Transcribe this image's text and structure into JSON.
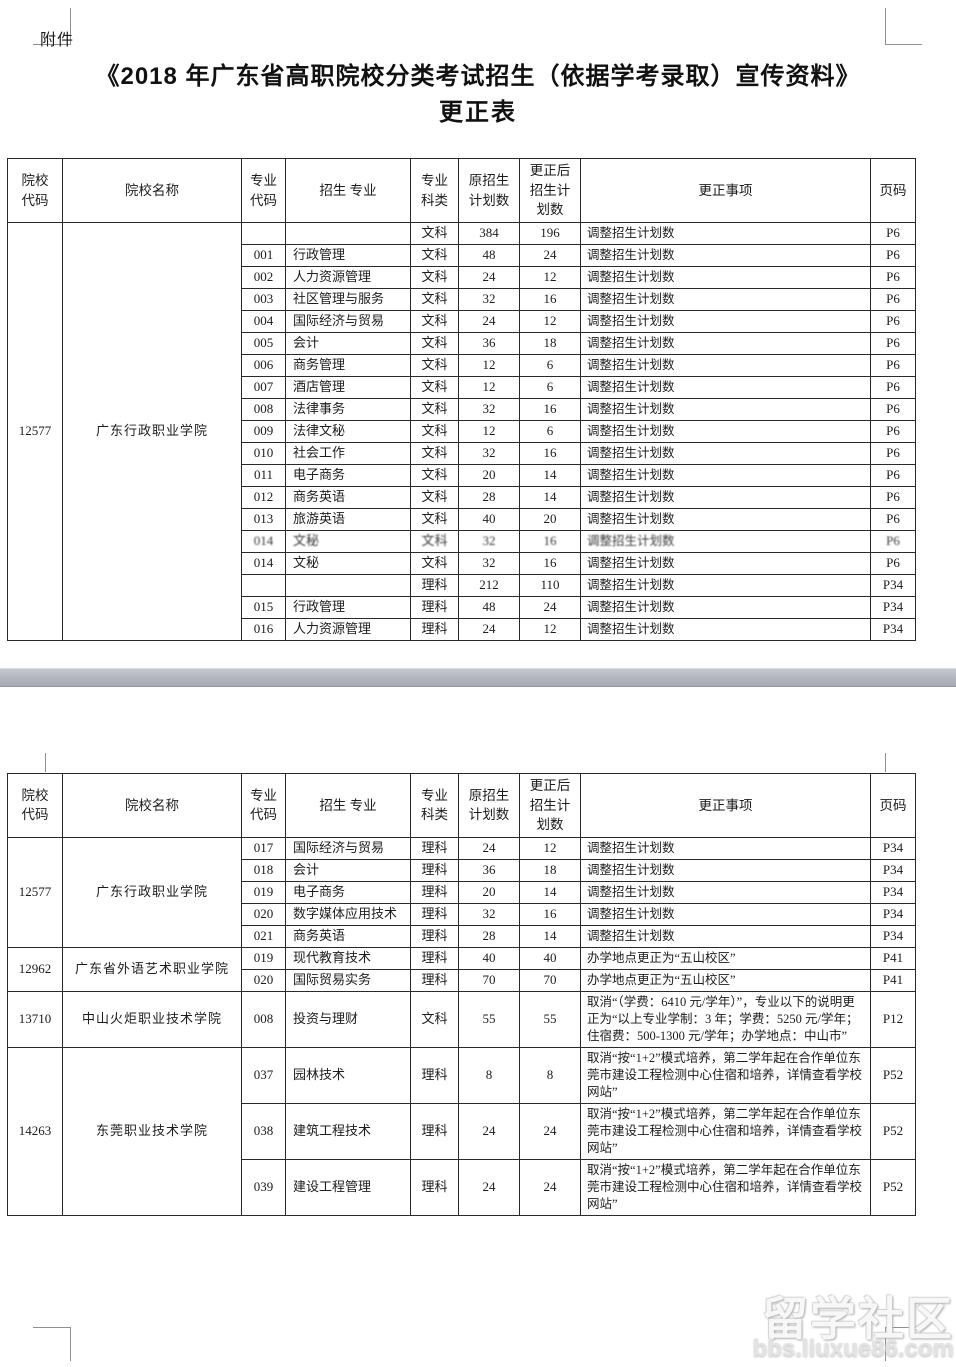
{
  "page": {
    "attachment_label": "附件",
    "title_line1": "《2018 年广东省高职院校分类考试招生（依据学考录取）宣传资料》",
    "title_line2": "更正表"
  },
  "headers": [
    "院校\n代码",
    "院校名称",
    "专业\n代码",
    "招生 专业",
    "专业\n科类",
    "原招生\n计划数",
    "更正后\n招生计\n划数",
    "更正事项",
    "页码"
  ],
  "table1": {
    "groups": [
      {
        "school_code": "12577",
        "school_name": "广东行政职业学院",
        "rows": [
          {
            "code": "",
            "major": "",
            "cat": "文科",
            "orig": "384",
            "updated": "196",
            "note": "调整招生计划数",
            "page": "P6"
          },
          {
            "code": "001",
            "major": "行政管理",
            "cat": "文科",
            "orig": "48",
            "updated": "24",
            "note": "调整招生计划数",
            "page": "P6"
          },
          {
            "code": "002",
            "major": "人力资源管理",
            "cat": "文科",
            "orig": "24",
            "updated": "12",
            "note": "调整招生计划数",
            "page": "P6"
          },
          {
            "code": "003",
            "major": "社区管理与服务",
            "cat": "文科",
            "orig": "32",
            "updated": "16",
            "note": "调整招生计划数",
            "page": "P6"
          },
          {
            "code": "004",
            "major": "国际经济与贸易",
            "cat": "文科",
            "orig": "24",
            "updated": "12",
            "note": "调整招生计划数",
            "page": "P6"
          },
          {
            "code": "005",
            "major": "会计",
            "cat": "文科",
            "orig": "36",
            "updated": "18",
            "note": "调整招生计划数",
            "page": "P6"
          },
          {
            "code": "006",
            "major": "商务管理",
            "cat": "文科",
            "orig": "12",
            "updated": "6",
            "note": "调整招生计划数",
            "page": "P6"
          },
          {
            "code": "007",
            "major": "酒店管理",
            "cat": "文科",
            "orig": "12",
            "updated": "6",
            "note": "调整招生计划数",
            "page": "P6"
          },
          {
            "code": "008",
            "major": "法律事务",
            "cat": "文科",
            "orig": "32",
            "updated": "16",
            "note": "调整招生计划数",
            "page": "P6"
          },
          {
            "code": "009",
            "major": "法律文秘",
            "cat": "文科",
            "orig": "12",
            "updated": "6",
            "note": "调整招生计划数",
            "page": "P6"
          },
          {
            "code": "010",
            "major": "社会工作",
            "cat": "文科",
            "orig": "32",
            "updated": "16",
            "note": "调整招生计划数",
            "page": "P6"
          },
          {
            "code": "011",
            "major": "电子商务",
            "cat": "文科",
            "orig": "20",
            "updated": "14",
            "note": "调整招生计划数",
            "page": "P6"
          },
          {
            "code": "012",
            "major": "商务英语",
            "cat": "文科",
            "orig": "28",
            "updated": "14",
            "note": "调整招生计划数",
            "page": "P6"
          },
          {
            "code": "013",
            "major": "旅游英语",
            "cat": "文科",
            "orig": "40",
            "updated": "20",
            "note": "调整招生计划数",
            "page": "P6"
          },
          {
            "code": "014",
            "major": "文秘",
            "cat": "文科",
            "orig": "32",
            "updated": "16",
            "note": "调整招生计划数",
            "page": "P6",
            "blurred": true
          },
          {
            "code": "014",
            "major": "文秘",
            "cat": "文科",
            "orig": "32",
            "updated": "16",
            "note": "调整招生计划数",
            "page": "P6"
          },
          {
            "code": "",
            "major": "",
            "cat": "理科",
            "orig": "212",
            "updated": "110",
            "note": "调整招生计划数",
            "page": "P34"
          },
          {
            "code": "015",
            "major": "行政管理",
            "cat": "理科",
            "orig": "48",
            "updated": "24",
            "note": "调整招生计划数",
            "page": "P34"
          },
          {
            "code": "016",
            "major": "人力资源管理",
            "cat": "理科",
            "orig": "24",
            "updated": "12",
            "note": "调整招生计划数",
            "page": "P34"
          }
        ]
      }
    ]
  },
  "table2": {
    "groups": [
      {
        "school_code": "12577",
        "school_name": "广东行政职业学院",
        "rows": [
          {
            "code": "017",
            "major": "国际经济与贸易",
            "cat": "理科",
            "orig": "24",
            "updated": "12",
            "note": "调整招生计划数",
            "page": "P34"
          },
          {
            "code": "018",
            "major": "会计",
            "cat": "理科",
            "orig": "36",
            "updated": "18",
            "note": "调整招生计划数",
            "page": "P34"
          },
          {
            "code": "019",
            "major": "电子商务",
            "cat": "理科",
            "orig": "20",
            "updated": "14",
            "note": "调整招生计划数",
            "page": "P34"
          },
          {
            "code": "020",
            "major": "数字媒体应用技术",
            "cat": "理科",
            "orig": "32",
            "updated": "16",
            "note": "调整招生计划数",
            "page": "P34"
          },
          {
            "code": "021",
            "major": "商务英语",
            "cat": "理科",
            "orig": "28",
            "updated": "14",
            "note": "调整招生计划数",
            "page": "P34"
          }
        ]
      },
      {
        "school_code": "12962",
        "school_name": "广东省外语艺术职业学院",
        "rows": [
          {
            "code": "019",
            "major": "现代教育技术",
            "cat": "理科",
            "orig": "40",
            "updated": "40",
            "note": "办学地点更正为“五山校区”",
            "page": "P41"
          },
          {
            "code": "020",
            "major": "国际贸易实务",
            "cat": "理科",
            "orig": "70",
            "updated": "70",
            "note": "办学地点更正为“五山校区”",
            "page": "P41"
          }
        ]
      },
      {
        "school_code": "13710",
        "school_name": "中山火炬职业技术学院",
        "rows": [
          {
            "code": "008",
            "major": "投资与理财",
            "cat": "文科",
            "orig": "55",
            "updated": "55",
            "note": "取消“（学费：6410 元/学年）”，专业以下的说明更正为“以上专业学制：3 年；学费：5250 元/学年；住宿费：500-1300 元/学年；办学地点：中山市”",
            "page": "P12"
          }
        ]
      },
      {
        "school_code": "14263",
        "school_name": "东莞职业技术学院",
        "rows": [
          {
            "code": "037",
            "major": "园林技术",
            "cat": "理科",
            "orig": "8",
            "updated": "8",
            "note": "取消“按“1+2”模式培养，第二学年起在合作单位东莞市建设工程检测中心住宿和培养，详情查看学校网站”",
            "page": "P52"
          },
          {
            "code": "038",
            "major": "建筑工程技术",
            "cat": "理科",
            "orig": "24",
            "updated": "24",
            "note": "取消“按“1+2”模式培养，第二学年起在合作单位东莞市建设工程检测中心住宿和培养，详情查看学校网站”",
            "page": "P52"
          },
          {
            "code": "039",
            "major": "建设工程管理",
            "cat": "理科",
            "orig": "24",
            "updated": "24",
            "note": "取消“按“1+2”模式培养，第二学年起在合作单位东莞市建设工程检测中心住宿和培养，详情查看学校网站”",
            "page": "P52"
          }
        ]
      }
    ]
  },
  "watermark": {
    "title": "留学社区",
    "url": "bbs.liuxue86.com"
  }
}
